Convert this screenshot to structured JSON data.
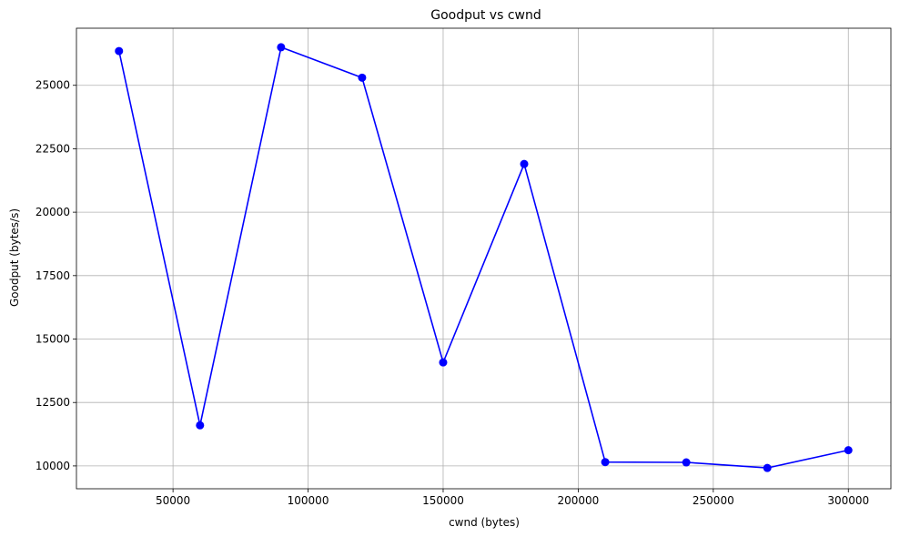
{
  "chart_data": {
    "type": "line",
    "title": "Goodput vs cwnd",
    "xlabel": "cwnd (bytes)",
    "ylabel": "Goodput (bytes/s)",
    "xlim": [
      14250,
      315750
    ],
    "ylim": [
      9100,
      27250
    ],
    "xticks": [
      50000,
      100000,
      150000,
      200000,
      250000,
      300000
    ],
    "yticks": [
      10000,
      12500,
      15000,
      17500,
      20000,
      22500,
      25000
    ],
    "grid": true,
    "series": [
      {
        "color": "#0000ff",
        "marker": "circle",
        "x": [
          30000,
          60000,
          90000,
          120000,
          150000,
          180000,
          210000,
          240000,
          270000,
          300000
        ],
        "y": [
          26350,
          11600,
          26500,
          25300,
          14080,
          21900,
          10150,
          10140,
          9920,
          10620
        ]
      }
    ]
  }
}
